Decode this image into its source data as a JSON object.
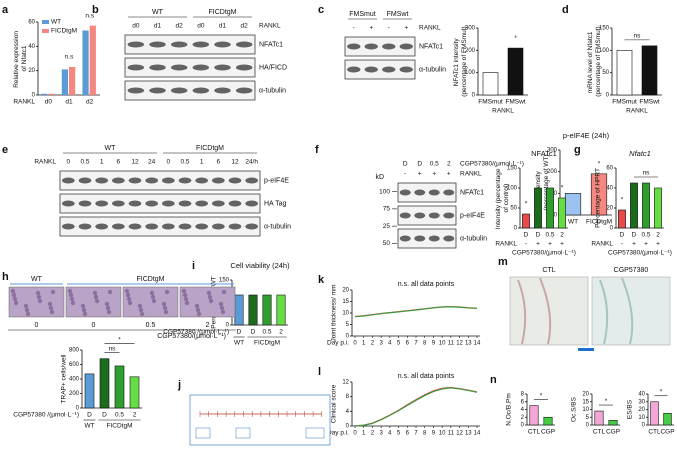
{
  "chart_data": [
    {
      "panel": "a",
      "type": "bar",
      "ylabel": "Relative expression of Nfatc1",
      "xlabel": "RANKL",
      "categories": [
        "d0",
        "d1",
        "d2"
      ],
      "series": [
        {
          "name": "WT",
          "color": "#5b9bd5",
          "values": [
            1,
            21,
            53
          ]
        },
        {
          "name": "FICDtgM",
          "color": "#f4877f",
          "values": [
            1,
            23,
            57
          ]
        }
      ],
      "ylim": [
        0,
        60
      ],
      "yticks": [
        0,
        20,
        40,
        60
      ],
      "annotations": [
        {
          "text": "n.s",
          "over": [
            1
          ]
        },
        {
          "text": "n.s",
          "over": [
            2
          ]
        }
      ]
    },
    {
      "type": "bar",
      "ylabel": "NFATc1 intensity (percentage of FMSmut)",
      "xlabel": "RANKL",
      "categories": [
        "FMSmut",
        "FMSwt"
      ],
      "values": [
        100,
        210
      ],
      "colors": [
        "#ffffff",
        "#111111"
      ],
      "ylim": [
        0,
        300
      ],
      "yticks": [
        0,
        100,
        200,
        300
      ],
      "annotations": [
        {
          "text": "*",
          "over": [
            1
          ]
        }
      ]
    },
    {
      "panel": "d",
      "type": "bar",
      "ylabel": "mRNA level of Nfatc1 (percentage of FMSmut)",
      "xlabel": "RANKL",
      "categories": [
        "FMSmut",
        "FMSwt"
      ],
      "values": [
        100,
        110
      ],
      "colors": [
        "#ffffff",
        "#111111"
      ],
      "ylim": [
        0,
        150
      ],
      "yticks": [
        0,
        50,
        100,
        150
      ],
      "annotations": [
        {
          "text": "ns",
          "over": [
            0,
            1
          ]
        }
      ]
    },
    {
      "type": "bar",
      "title": "p-eIF4E (24h)",
      "ylabel": "Intensity (percentage of WT)",
      "categories": [
        "WT",
        "FICDtgM"
      ],
      "values": [
        100,
        190
      ],
      "colors": [
        "#9cc3f0",
        "#f4877f"
      ],
      "ylim": [
        0,
        300
      ],
      "yticks": [
        0,
        100,
        200,
        300
      ],
      "annotations": [
        {
          "text": "*",
          "over": [
            1
          ]
        }
      ]
    },
    {
      "type": "bar",
      "title": "NFATc1",
      "ylabel": "Intensity (percentage of control)",
      "xlabel": "CGP57380/(μmol·L⁻¹)",
      "categories": [
        "D",
        "D",
        "0.5",
        "2"
      ],
      "rows": [
        {
          "label": "RANKL",
          "values": [
            "-",
            "+",
            "+",
            "+"
          ]
        }
      ],
      "values": [
        35,
        100,
        100,
        75
      ],
      "colors": [
        "#e84a4a",
        "#1d6b1d",
        "#2f9e2f",
        "#66dd44"
      ],
      "ylim": [
        0,
        150
      ],
      "yticks": [
        0,
        50,
        100,
        150
      ],
      "annotations": [
        {
          "text": "*",
          "over": [
            0
          ]
        },
        {
          "text": "*",
          "over": [
            3
          ]
        }
      ]
    },
    {
      "panel": "g",
      "type": "bar",
      "title": "Nfatc1",
      "ylabel": "Percentage of HPRT",
      "xlabel": "CGP57380/(μmol·L⁻¹)",
      "categories": [
        "D",
        "D",
        "0.5",
        "2"
      ],
      "rows": [
        {
          "label": "RANKL",
          "values": [
            "-",
            "+",
            "+",
            "+"
          ]
        }
      ],
      "values": [
        18,
        45,
        45,
        40
      ],
      "colors": [
        "#e84a4a",
        "#1d6b1d",
        "#2f9e2f",
        "#66dd44"
      ],
      "ylim": [
        0,
        60
      ],
      "yticks": [
        0,
        20,
        40,
        60
      ],
      "annotations": [
        {
          "text": "*",
          "over": [
            0
          ]
        },
        {
          "text": "ns",
          "over": [
            1,
            3
          ]
        }
      ]
    },
    {
      "type": "bar",
      "ylabel": "TRAP+ cells/well",
      "xlabel": "CGP57380 /(μmol·L⁻¹)",
      "categories": [
        "D",
        "D",
        "0.5",
        "2"
      ],
      "groups": [
        {
          "label": "WT",
          "over": [
            0
          ]
        },
        {
          "label": "FICDtgM",
          "over": [
            1,
            2,
            3
          ]
        }
      ],
      "values": [
        470,
        680,
        580,
        430
      ],
      "colors": [
        "#5b9bd5",
        "#1d6b1d",
        "#2f9e2f",
        "#66dd44"
      ],
      "ylim": [
        0,
        800
      ],
      "yticks": [
        0,
        200,
        400,
        600,
        800
      ],
      "annotations": [
        {
          "text": "ns",
          "over": [
            1,
            2
          ]
        },
        {
          "text": "*",
          "over": [
            1,
            3
          ]
        }
      ]
    },
    {
      "panel": "i",
      "type": "bar",
      "title": "Cell viability (24h)",
      "ylabel": "Percentage of WT",
      "xlabel": "CGP57380 /(μmol·L⁻¹)",
      "categories": [
        "D",
        "D",
        "0.5",
        "2"
      ],
      "groups": [
        {
          "label": "WT",
          "over": [
            0
          ]
        },
        {
          "label": "FICDtgM",
          "over": [
            1,
            2,
            3
          ]
        }
      ],
      "values": [
        100,
        100,
        100,
        100
      ],
      "colors": [
        "#5b9bd5",
        "#1d6b1d",
        "#2f9e2f",
        "#66dd44"
      ],
      "ylim": [
        0,
        150
      ],
      "yticks": [
        0,
        50,
        100,
        150
      ]
    },
    {
      "panel": "k",
      "type": "line",
      "ylabel": "Joint thickness/ mm",
      "xlabel": "Day p.i.",
      "annotations": [
        {
          "text": "n.s. all data points"
        }
      ],
      "x": [
        0,
        1,
        2,
        3,
        4,
        5,
        6,
        7,
        8,
        9,
        10,
        11,
        12,
        13,
        14
      ],
      "series": [
        {
          "color": "#d9534f",
          "values": [
            8.5,
            8.8,
            9.3,
            9.8,
            10.2,
            10.6,
            11,
            11.4,
            11.8,
            12.3,
            12.7,
            12.8,
            12.6,
            12.3,
            12.1
          ]
        },
        {
          "color": "#3c9a3c",
          "values": [
            8.4,
            8.7,
            9.2,
            9.7,
            10.1,
            10.5,
            10.9,
            11.3,
            11.8,
            12.2,
            12.6,
            12.7,
            12.5,
            12.2,
            12
          ]
        }
      ],
      "xlim": [
        0,
        14
      ],
      "xticks": [
        0,
        1,
        2,
        3,
        4,
        5,
        6,
        7,
        8,
        9,
        10,
        11,
        12,
        13,
        14
      ],
      "ylim": [
        0,
        20
      ],
      "yticks": [
        0,
        5,
        10,
        15,
        20
      ]
    },
    {
      "panel": "l",
      "type": "line",
      "ylabel": "Clinical score",
      "xlabel": "Day p.i.",
      "annotations": [
        {
          "text": "n.s. all data points"
        }
      ],
      "x": [
        0,
        1,
        2,
        3,
        4,
        5,
        6,
        7,
        8,
        9,
        10,
        11,
        12,
        13,
        14
      ],
      "series": [
        {
          "color": "#d9534f",
          "values": [
            0,
            0.2,
            0.8,
            1.8,
            3,
            4.3,
            5.8,
            7.2,
            8.5,
            9.6,
            10.3,
            10.5,
            10.2,
            9.8,
            9.3
          ]
        },
        {
          "color": "#3c9a3c",
          "values": [
            0,
            0.2,
            0.7,
            1.7,
            2.9,
            4.2,
            5.6,
            7,
            8.3,
            9.4,
            10.1,
            10.4,
            10.1,
            9.7,
            9.2
          ]
        }
      ],
      "xlim": [
        0,
        14
      ],
      "xticks": [
        0,
        1,
        2,
        3,
        4,
        5,
        6,
        7,
        8,
        9,
        10,
        11,
        12,
        13,
        14
      ],
      "ylim": [
        0,
        12
      ],
      "yticks": [
        0,
        4,
        8,
        12
      ]
    },
    {
      "panel": "n",
      "type": "bar",
      "ylabel": "N.Oc/B.Pm",
      "categories": [
        "CTL",
        "CGP"
      ],
      "values": [
        5,
        2
      ],
      "colors": [
        "#f4a6d7",
        "#44cc44"
      ],
      "ylim": [
        0,
        8
      ],
      "yticks": [
        0,
        2,
        4,
        6,
        8
      ],
      "annotations": [
        {
          "text": "*",
          "over": [
            0,
            1
          ]
        }
      ]
    },
    {
      "type": "bar",
      "ylabel": "Oc.S/BS",
      "categories": [
        "CTL",
        "CGP"
      ],
      "values": [
        9,
        3
      ],
      "colors": [
        "#f4a6d7",
        "#44cc44"
      ],
      "ylim": [
        0,
        20
      ],
      "yticks": [
        0,
        5,
        10,
        15,
        20
      ],
      "annotations": [
        {
          "text": "*",
          "over": [
            0,
            1
          ]
        }
      ]
    },
    {
      "type": "bar",
      "ylabel": "ES/BS",
      "categories": [
        "CTL",
        "CGP"
      ],
      "values": [
        30,
        15
      ],
      "colors": [
        "#f4a6d7",
        "#44cc44"
      ],
      "ylim": [
        0,
        40
      ],
      "yticks": [
        0,
        10,
        20,
        30,
        40
      ],
      "annotations": [
        {
          "text": "*",
          "over": [
            0,
            1
          ]
        }
      ]
    }
  ],
  "blots": [
    {
      "panel": "b",
      "groups": [
        "WT",
        "FICDtgM"
      ],
      "lane_rows": [
        {
          "label": "RANKL",
          "values": [
            "d0",
            "d1",
            "d2",
            "d0",
            "d1",
            "d2"
          ]
        }
      ],
      "bands": [
        "NFATc1",
        "HA/FICD",
        "α-tubulin"
      ]
    },
    {
      "panel": "c",
      "groups": [
        "FMSmut",
        "FMSwt"
      ],
      "lane_rows": [
        {
          "label": "RANKL",
          "values": [
            "-",
            "+",
            "-",
            "+"
          ]
        }
      ],
      "bands": [
        "NFATc1",
        "α-tubulin"
      ]
    },
    {
      "panel": "e",
      "groups": [
        "WT",
        "FICDtgM"
      ],
      "lane_rows": [
        {
          "label": "RANKL",
          "values": [
            "0",
            "0.5",
            "1",
            "6",
            "12",
            "24",
            "0",
            "0.5",
            "1",
            "6",
            "12",
            "24/h"
          ]
        }
      ],
      "bands": [
        "p-eIF4E",
        "HA Tag",
        "α-tubulin"
      ]
    },
    {
      "panel": "f",
      "lane_rows": [
        {
          "label": "CGP57380/(μmol·L⁻¹)",
          "values": [
            "D",
            "D",
            "0.5",
            "2"
          ]
        },
        {
          "label": "RANKL",
          "values": [
            "-",
            "+",
            "+",
            "+"
          ]
        }
      ],
      "marker_unit": "kD",
      "markers": [
        "100",
        "75",
        "25",
        "50"
      ],
      "bands": [
        "NFATc1",
        "p-eIF4E",
        "α-tubulin"
      ]
    }
  ],
  "images": [
    {
      "panel": "h",
      "groups": [
        "WT",
        "FICDtgM"
      ],
      "labels": [
        "0",
        "0",
        "0.5",
        "2"
      ],
      "xlabel": "CGP57380/(μmol·L⁻¹)"
    },
    {
      "panel": "j"
    },
    {
      "panel": "m",
      "labels": [
        "CTL",
        "CGP57380"
      ]
    }
  ]
}
